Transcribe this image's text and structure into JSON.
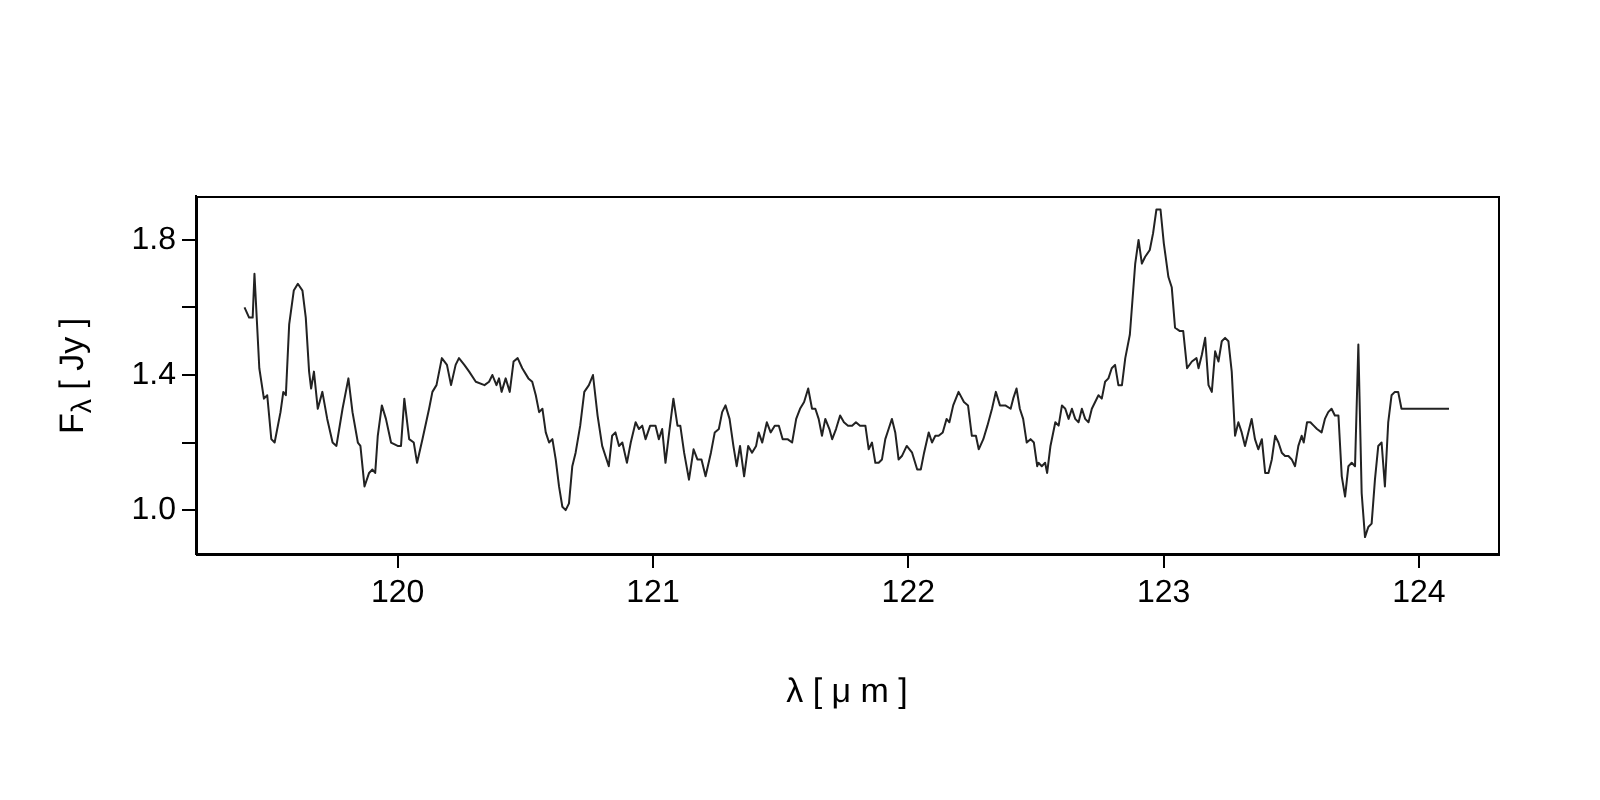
{
  "chart_data": {
    "type": "line",
    "xlabel": "λ [ μ m ]",
    "ylabel": "F$_{λ}$ [ Jy ]",
    "xlim": [
      119.21,
      124.31
    ],
    "ylim": [
      0.87,
      1.93
    ],
    "xticks": [
      120,
      121,
      122,
      123,
      124
    ],
    "yticks": [
      {
        "value": 1,
        "label": "1.0"
      },
      {
        "value": 1.2,
        "label": null
      },
      1.4,
      {
        "value": 1.6,
        "label": null
      },
      1.8
    ],
    "grid": false,
    "legend": false,
    "marker": "none",
    "line_style": "solid",
    "series": [
      {
        "color": "#222222",
        "x": [
          119.4,
          119.418,
          119.432,
          119.439,
          119.458,
          119.476,
          119.489,
          119.505,
          119.518,
          119.541,
          119.552,
          119.562,
          119.575,
          119.593,
          119.609,
          119.627,
          119.64,
          119.653,
          119.661,
          119.672,
          119.687,
          119.705,
          119.724,
          119.745,
          119.76,
          119.784,
          119.807,
          119.823,
          119.844,
          119.854,
          119.87,
          119.888,
          119.901,
          119.912,
          119.922,
          119.938,
          119.954,
          119.974,
          120.0,
          120.013,
          120.026,
          120.045,
          120.063,
          120.076,
          120.097,
          120.123,
          120.136,
          120.152,
          120.173,
          120.193,
          120.209,
          120.227,
          120.24,
          120.261,
          120.28,
          120.306,
          120.34,
          120.358,
          120.371,
          120.387,
          120.397,
          120.407,
          120.423,
          120.439,
          120.454,
          120.47,
          120.488,
          120.512,
          120.527,
          120.541,
          120.554,
          120.567,
          120.58,
          120.593,
          120.606,
          120.619,
          120.632,
          120.645,
          120.658,
          120.671,
          120.684,
          120.697,
          120.715,
          120.731,
          120.749,
          120.765,
          120.783,
          120.801,
          120.827,
          120.84,
          120.853,
          120.867,
          120.88,
          120.898,
          120.913,
          120.932,
          120.945,
          120.958,
          120.971,
          120.989,
          121.01,
          121.023,
          121.036,
          121.049,
          121.065,
          121.08,
          121.096,
          121.107,
          121.122,
          121.141,
          121.159,
          121.174,
          121.19,
          121.206,
          121.227,
          121.242,
          121.258,
          121.271,
          121.284,
          121.3,
          121.315,
          121.328,
          121.341,
          121.357,
          121.373,
          121.388,
          121.404,
          121.414,
          121.428,
          121.446,
          121.461,
          121.477,
          121.493,
          121.508,
          121.527,
          121.545,
          121.561,
          121.576,
          121.592,
          121.608,
          121.623,
          121.636,
          121.649,
          121.662,
          121.675,
          121.691,
          121.702,
          121.717,
          121.733,
          121.748,
          121.764,
          121.78,
          121.795,
          121.811,
          121.832,
          121.845,
          121.858,
          121.871,
          121.884,
          121.897,
          121.91,
          121.923,
          121.936,
          121.949,
          121.962,
          121.975,
          121.994,
          122.015,
          122.035,
          122.049,
          122.062,
          122.08,
          122.093,
          122.106,
          122.119,
          122.135,
          122.15,
          122.161,
          122.176,
          122.197,
          122.218,
          122.234,
          122.249,
          122.265,
          122.276,
          122.294,
          122.31,
          122.328,
          122.343,
          122.359,
          122.38,
          122.401,
          122.411,
          122.424,
          122.437,
          122.45,
          122.464,
          122.479,
          122.492,
          122.505,
          122.51,
          122.523,
          122.536,
          122.544,
          122.557,
          122.576,
          122.589,
          122.602,
          122.615,
          122.628,
          122.641,
          122.654,
          122.667,
          122.68,
          122.693,
          122.706,
          122.719,
          122.732,
          122.745,
          122.758,
          122.771,
          122.784,
          122.797,
          122.81,
          122.823,
          122.837,
          122.85,
          122.868,
          122.889,
          122.902,
          122.915,
          122.928,
          122.946,
          122.959,
          122.972,
          122.988,
          123.001,
          123.019,
          123.032,
          123.045,
          123.064,
          123.077,
          123.092,
          123.111,
          123.129,
          123.137,
          123.15,
          123.163,
          123.176,
          123.189,
          123.202,
          123.215,
          123.228,
          123.241,
          123.254,
          123.267,
          123.28,
          123.293,
          123.306,
          123.319,
          123.332,
          123.345,
          123.358,
          123.371,
          123.385,
          123.398,
          123.411,
          123.424,
          123.437,
          123.45,
          123.463,
          123.476,
          123.489,
          123.502,
          123.515,
          123.528,
          123.541,
          123.549,
          123.562,
          123.575,
          123.588,
          123.601,
          123.619,
          123.632,
          123.645,
          123.658,
          123.671,
          123.685,
          123.698,
          123.711,
          123.724,
          123.737,
          123.75,
          123.763,
          123.776,
          123.789,
          123.802,
          123.815,
          123.828,
          123.841,
          123.854,
          123.867,
          123.88,
          123.893,
          123.906,
          123.919,
          123.932,
          123.945,
          124.118
        ],
        "values": [
          1.6,
          1.57,
          1.57,
          1.7,
          1.42,
          1.33,
          1.34,
          1.21,
          1.2,
          1.29,
          1.35,
          1.34,
          1.55,
          1.65,
          1.67,
          1.65,
          1.57,
          1.41,
          1.36,
          1.41,
          1.3,
          1.35,
          1.27,
          1.2,
          1.19,
          1.3,
          1.39,
          1.29,
          1.2,
          1.19,
          1.07,
          1.11,
          1.12,
          1.11,
          1.22,
          1.31,
          1.27,
          1.2,
          1.19,
          1.19,
          1.33,
          1.21,
          1.2,
          1.14,
          1.21,
          1.3,
          1.35,
          1.37,
          1.45,
          1.43,
          1.37,
          1.43,
          1.45,
          1.43,
          1.41,
          1.38,
          1.37,
          1.38,
          1.4,
          1.37,
          1.39,
          1.35,
          1.39,
          1.35,
          1.44,
          1.45,
          1.42,
          1.39,
          1.38,
          1.34,
          1.29,
          1.3,
          1.23,
          1.2,
          1.21,
          1.15,
          1.07,
          1.01,
          1.0,
          1.02,
          1.13,
          1.17,
          1.25,
          1.35,
          1.37,
          1.4,
          1.28,
          1.19,
          1.13,
          1.22,
          1.23,
          1.19,
          1.2,
          1.14,
          1.2,
          1.26,
          1.24,
          1.25,
          1.21,
          1.25,
          1.25,
          1.21,
          1.24,
          1.14,
          1.24,
          1.33,
          1.25,
          1.25,
          1.17,
          1.09,
          1.18,
          1.15,
          1.15,
          1.1,
          1.17,
          1.23,
          1.24,
          1.29,
          1.31,
          1.27,
          1.19,
          1.13,
          1.19,
          1.1,
          1.19,
          1.17,
          1.19,
          1.23,
          1.2,
          1.26,
          1.23,
          1.25,
          1.25,
          1.21,
          1.21,
          1.2,
          1.27,
          1.3,
          1.32,
          1.36,
          1.3,
          1.3,
          1.27,
          1.22,
          1.27,
          1.24,
          1.21,
          1.24,
          1.28,
          1.26,
          1.25,
          1.25,
          1.26,
          1.25,
          1.25,
          1.18,
          1.2,
          1.14,
          1.14,
          1.15,
          1.21,
          1.24,
          1.27,
          1.23,
          1.15,
          1.16,
          1.19,
          1.17,
          1.12,
          1.12,
          1.17,
          1.23,
          1.2,
          1.22,
          1.22,
          1.23,
          1.27,
          1.26,
          1.31,
          1.35,
          1.32,
          1.31,
          1.22,
          1.22,
          1.18,
          1.21,
          1.25,
          1.3,
          1.35,
          1.31,
          1.31,
          1.3,
          1.33,
          1.36,
          1.3,
          1.27,
          1.2,
          1.21,
          1.2,
          1.13,
          1.14,
          1.13,
          1.14,
          1.11,
          1.19,
          1.26,
          1.25,
          1.31,
          1.3,
          1.27,
          1.3,
          1.27,
          1.26,
          1.3,
          1.27,
          1.26,
          1.3,
          1.32,
          1.34,
          1.33,
          1.38,
          1.39,
          1.42,
          1.43,
          1.37,
          1.37,
          1.45,
          1.52,
          1.73,
          1.8,
          1.73,
          1.75,
          1.77,
          1.82,
          1.89,
          1.89,
          1.79,
          1.69,
          1.66,
          1.54,
          1.53,
          1.53,
          1.42,
          1.44,
          1.45,
          1.42,
          1.46,
          1.51,
          1.37,
          1.35,
          1.47,
          1.44,
          1.5,
          1.51,
          1.5,
          1.41,
          1.22,
          1.26,
          1.23,
          1.19,
          1.23,
          1.27,
          1.21,
          1.18,
          1.21,
          1.11,
          1.11,
          1.15,
          1.22,
          1.2,
          1.17,
          1.16,
          1.16,
          1.15,
          1.13,
          1.19,
          1.22,
          1.2,
          1.26,
          1.26,
          1.25,
          1.24,
          1.23,
          1.27,
          1.29,
          1.3,
          1.28,
          1.28,
          1.1,
          1.04,
          1.13,
          1.14,
          1.13,
          1.49,
          1.05,
          0.92,
          0.95,
          0.96,
          1.09,
          1.19,
          1.2,
          1.07,
          1.26,
          1.34,
          1.35,
          1.35,
          1.3,
          1.3,
          1.3
        ]
      }
    ]
  }
}
